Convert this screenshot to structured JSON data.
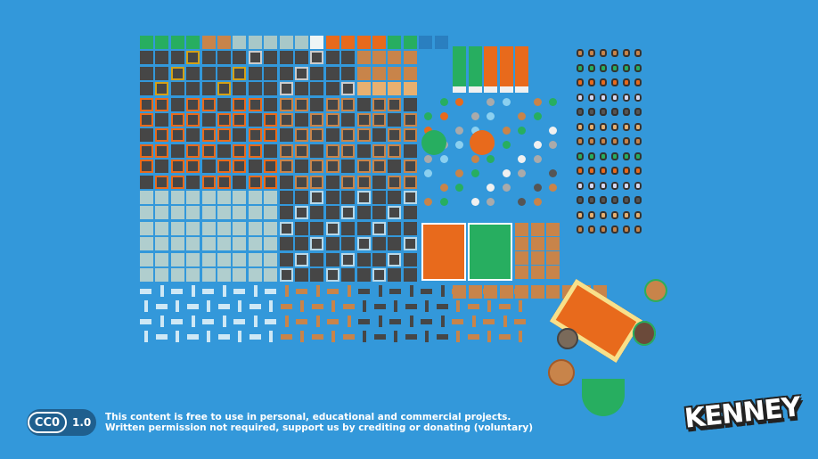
{
  "license": {
    "badge": "CC0",
    "version": "1.0",
    "line1": "This content is free to use in personal, educational and commercial projects.",
    "line2": "Written permission not required, support us by crediting or donating (voluntary)"
  },
  "logo": "KENNEY",
  "colors": {
    "background": "#3398da",
    "tile_dark": "#464646",
    "grass": "#27ae60",
    "wood": "#c8844a",
    "orange": "#e86a1c",
    "ice": "#a8c8c8",
    "sand": "#e8b070",
    "light": "#b0cece"
  }
}
